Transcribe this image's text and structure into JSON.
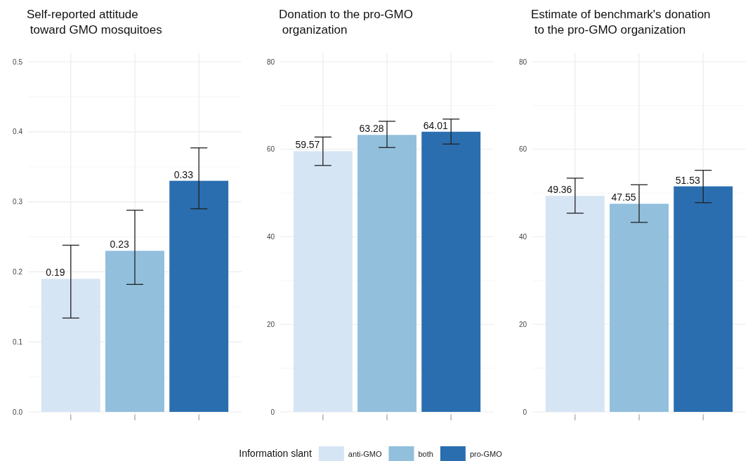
{
  "chart_data": [
    {
      "type": "bar",
      "title": "Self-reported attitude\n toward GMO mosquitoes",
      "categories": [
        null
      ],
      "ylim": [
        0,
        0.5
      ],
      "yticks": [
        {
          "value": 0.0,
          "label": "0.0"
        },
        0.1,
        0.2,
        0.3,
        0.4,
        0.5
      ],
      "grid": true,
      "legend": "bottom",
      "legend_title": "Information slant",
      "data_labels": true,
      "series": [
        {
          "name": "anti-GMO",
          "color": "#d6e5f4",
          "values": [
            0.19
          ],
          "errors": [
            [
              0.134,
              0.238
            ]
          ]
        },
        {
          "name": "both",
          "color": "#91bfdc",
          "values": [
            0.23
          ],
          "errors": [
            [
              0.182,
              0.288
            ]
          ]
        },
        {
          "name": "pro-GMO",
          "color": "#2a6eb0",
          "values": [
            0.33
          ],
          "errors": [
            [
              0.29,
              0.377
            ]
          ]
        }
      ]
    },
    {
      "type": "bar",
      "title": "Donation to the pro-GMO\n organization",
      "categories": [
        null
      ],
      "ylim": [
        0,
        80
      ],
      "yticks": [
        0,
        20,
        40,
        60,
        80
      ],
      "grid": true,
      "data_labels": true,
      "series": [
        {
          "color": "#d6e5f4",
          "values": [
            59.57
          ],
          "errors": [
            [
              56.3,
              62.8
            ]
          ]
        },
        {
          "color": "#91bfdc",
          "values": [
            63.28
          ],
          "errors": [
            [
              60.4,
              66.4
            ]
          ]
        },
        {
          "color": "#2a6eb0",
          "values": [
            64.01
          ],
          "errors": [
            [
              61.2,
              66.9
            ]
          ]
        }
      ]
    },
    {
      "type": "bar",
      "title": "Estimate of benchmark's donation\n to the pro-GMO organization",
      "categories": [
        null
      ],
      "ylim": [
        0,
        80
      ],
      "yticks": [
        0,
        20,
        40,
        60,
        80
      ],
      "grid": true,
      "data_labels": true,
      "series": [
        {
          "color": "#d6e5f4",
          "values": [
            49.36
          ],
          "errors": [
            [
              45.4,
              53.4
            ]
          ]
        },
        {
          "color": "#91bfdc",
          "values": [
            47.55
          ],
          "errors": [
            [
              43.3,
              51.9
            ]
          ]
        },
        {
          "color": "#2a6eb0",
          "values": [
            51.53
          ],
          "errors": [
            [
              47.8,
              55.2
            ]
          ]
        }
      ]
    }
  ]
}
